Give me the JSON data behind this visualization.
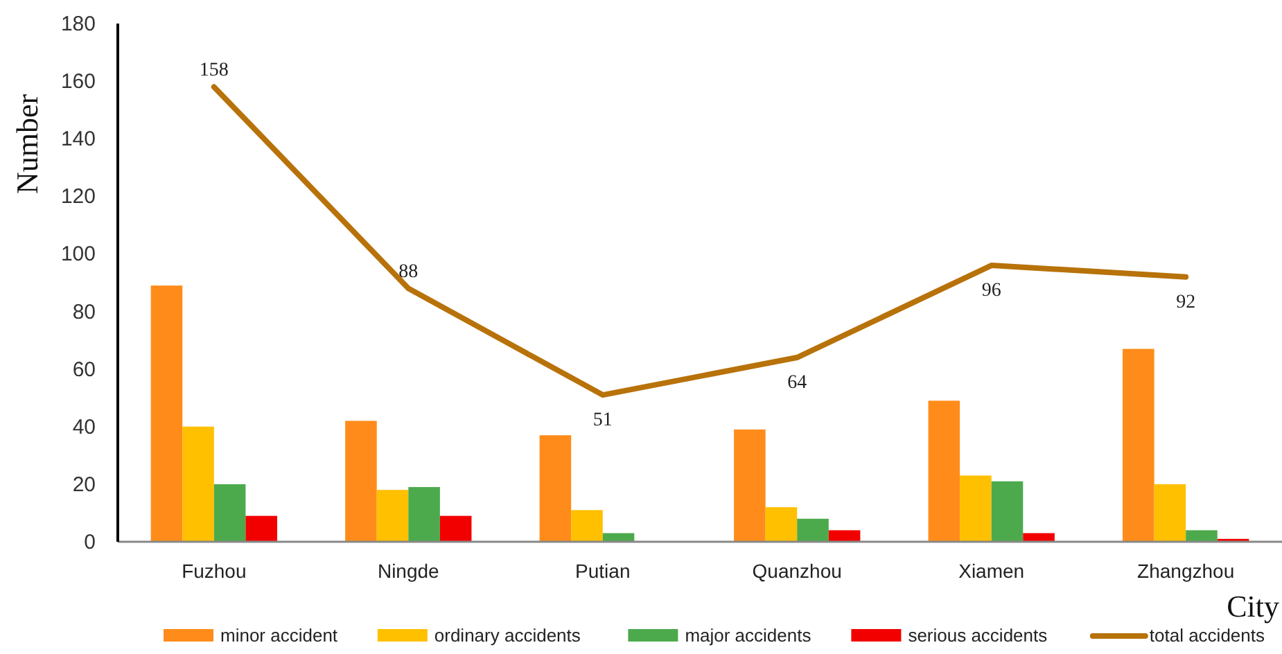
{
  "chart_data": {
    "type": "bar",
    "xlabel": "City",
    "ylabel": "Number",
    "categories": [
      "Fuzhou",
      "Ningde",
      "Putian",
      "Quanzhou",
      "Xiamen",
      "Zhangzhou"
    ],
    "series": [
      {
        "name": "minor accident",
        "color": "#ff8c1a",
        "values": [
          89,
          42,
          37,
          39,
          49,
          67
        ]
      },
      {
        "name": "ordinary accidents",
        "color": "#ffc000",
        "values": [
          40,
          18,
          11,
          12,
          23,
          20
        ]
      },
      {
        "name": "major accidents",
        "color": "#4caa4c",
        "values": [
          20,
          19,
          3,
          8,
          21,
          4
        ]
      },
      {
        "name": "serious accidents",
        "color": "#f20000",
        "values": [
          9,
          9,
          0,
          4,
          3,
          1
        ]
      },
      {
        "name": "total accidents",
        "type": "line",
        "color": "#b8720a",
        "values": [
          158,
          88,
          51,
          64,
          96,
          92
        ],
        "value_labels": [
          "158",
          "88",
          "51",
          "64",
          "96",
          "92"
        ]
      }
    ],
    "ylim": [
      0,
      180
    ],
    "yticks": [
      0,
      20,
      40,
      60,
      80,
      100,
      120,
      140,
      160,
      180
    ],
    "grid": false,
    "legend": "bottom",
    "marker": "none"
  }
}
